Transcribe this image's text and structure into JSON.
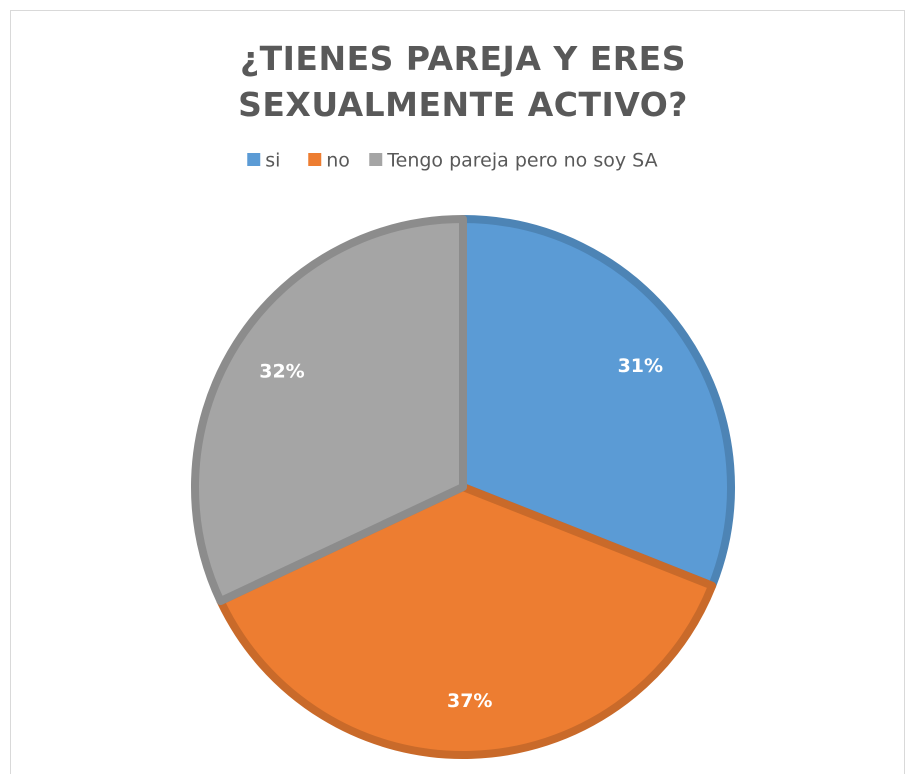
{
  "chart_data": {
    "type": "pie",
    "title": "¿TIENES PAREJA Y ERES SEXUALMENTE ACTIVO?",
    "categories": [
      "si",
      "no",
      "Tengo pareja pero no soy SA"
    ],
    "values": [
      31,
      37,
      32
    ],
    "value_labels": [
      "31%",
      "37%",
      "32%"
    ],
    "colors": [
      "#5b9bd5",
      "#ed7d31",
      "#a5a5a5"
    ],
    "legend": "top"
  }
}
